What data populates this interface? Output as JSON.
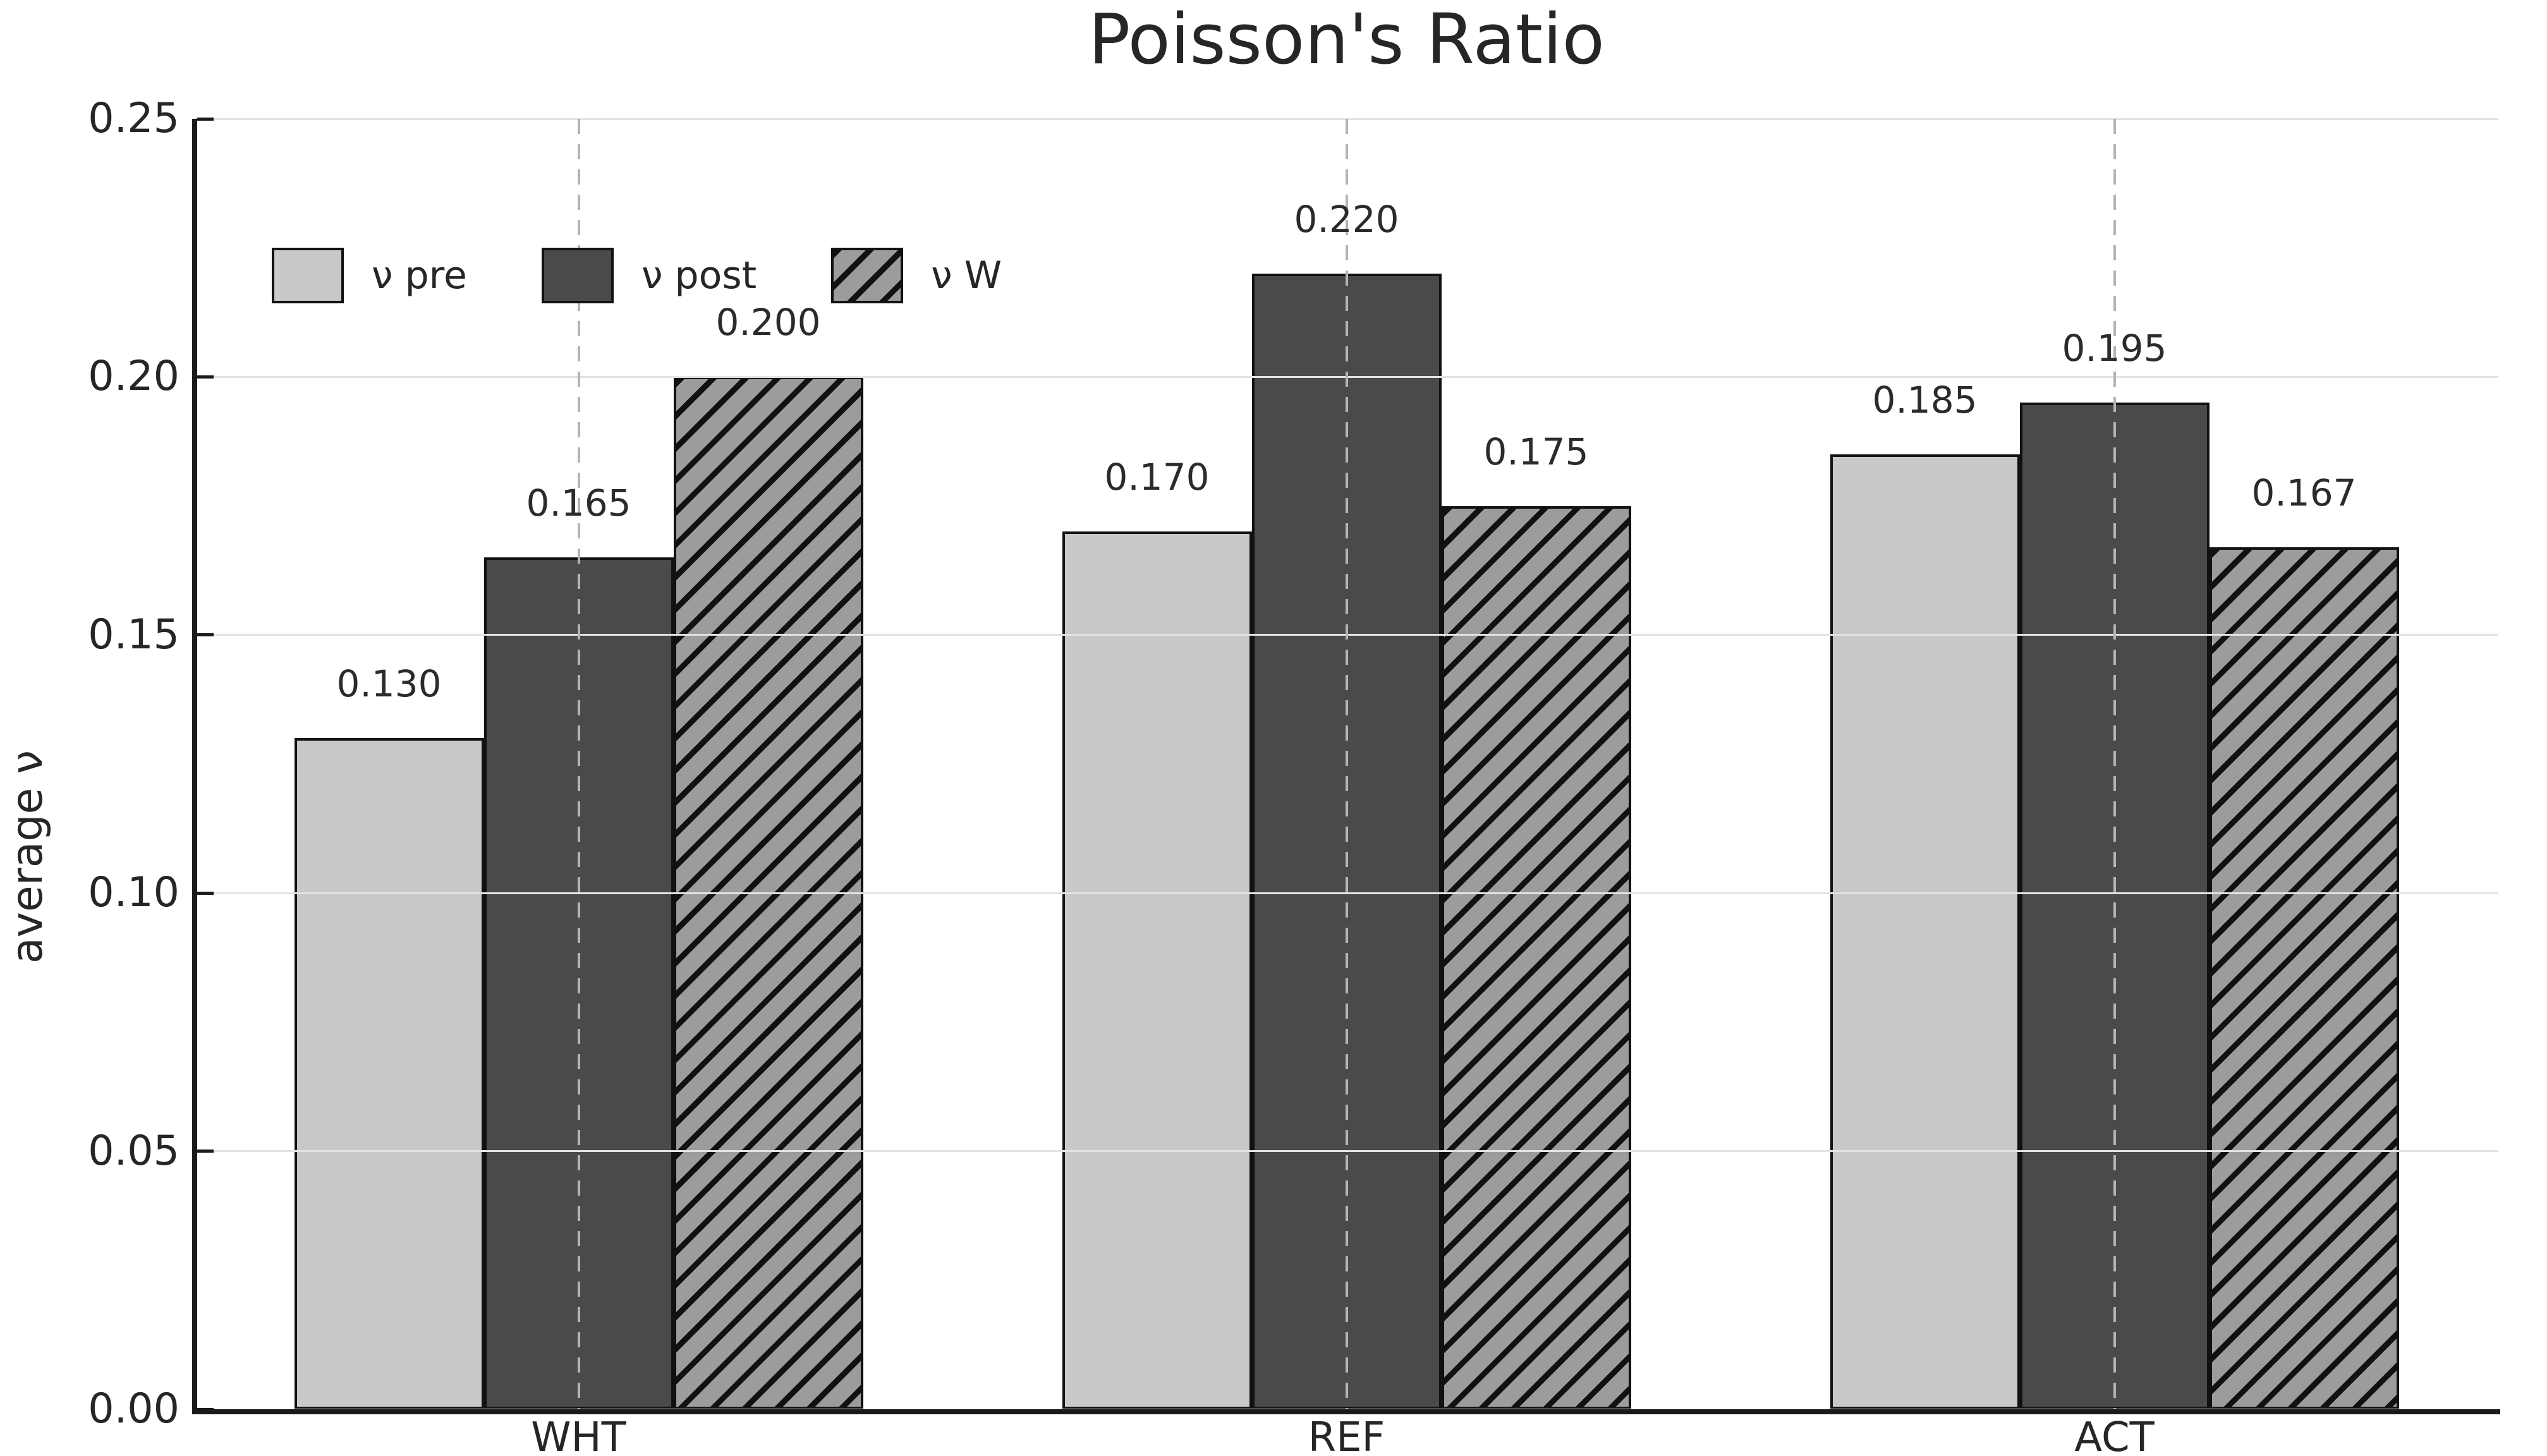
{
  "chart_data": {
    "type": "bar",
    "title": "Poisson's Ratio",
    "xlabel": "",
    "ylabel": "average ν",
    "categories": [
      "WHT",
      "REF",
      "ACT"
    ],
    "series": [
      {
        "name": "ν pre",
        "values": [
          0.13,
          0.17,
          0.185
        ],
        "fill": "#c9c9c9",
        "hatch": false
      },
      {
        "name": "ν post",
        "values": [
          0.165,
          0.22,
          0.195
        ],
        "fill": "#4a4a4a",
        "hatch": false
      },
      {
        "name": "ν W",
        "values": [
          0.2,
          0.175,
          0.167
        ],
        "fill": "#9c9c9c",
        "hatch": true
      }
    ],
    "value_label_decimals": 3,
    "ylim": [
      0,
      0.25
    ],
    "yticks": [
      "0.00",
      "0.05",
      "0.10",
      "0.15",
      "0.20",
      "0.25"
    ],
    "grid": {
      "horizontal_solid": true,
      "vertical_dashed_at_group_centers": true,
      "drawn_above_bars": true
    },
    "legend": {
      "position": "upper-left",
      "orientation": "horizontal",
      "frame": false
    },
    "colors": {
      "background": "#ffffff",
      "bar_edge": "#111111",
      "hatch_line": "#111111",
      "text": "#262626",
      "grid_horizontal": "#e3e3e3",
      "grid_vertical_dashed": "#b4b4b4",
      "spine": "#1a1a1a"
    }
  }
}
